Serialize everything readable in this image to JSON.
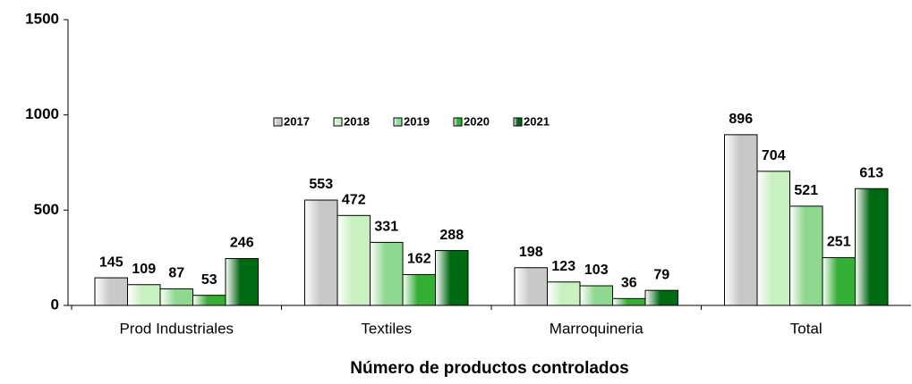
{
  "chart_data": {
    "type": "bar",
    "x_label": "Número de productos controlados",
    "categories": [
      "Prod Industriales",
      "Textiles",
      "Marroquineria",
      "Total"
    ],
    "series": [
      {
        "name": "2017",
        "color": "#c8c8c8",
        "values": [
          145,
          553,
          198,
          896
        ]
      },
      {
        "name": "2018",
        "color": "#c8f0c0",
        "values": [
          109,
          472,
          123,
          704
        ]
      },
      {
        "name": "2019",
        "color": "#8fd88f",
        "values": [
          87,
          331,
          103,
          521
        ]
      },
      {
        "name": "2020",
        "color": "#33b033",
        "values": [
          53,
          162,
          36,
          251
        ]
      },
      {
        "name": "2021",
        "color": "#006a12",
        "values": [
          246,
          288,
          79,
          613
        ]
      }
    ],
    "ylim": [
      0,
      1500
    ],
    "yticks": [
      0,
      500,
      1000,
      1500
    ],
    "grid": false,
    "legend": "top-center"
  }
}
